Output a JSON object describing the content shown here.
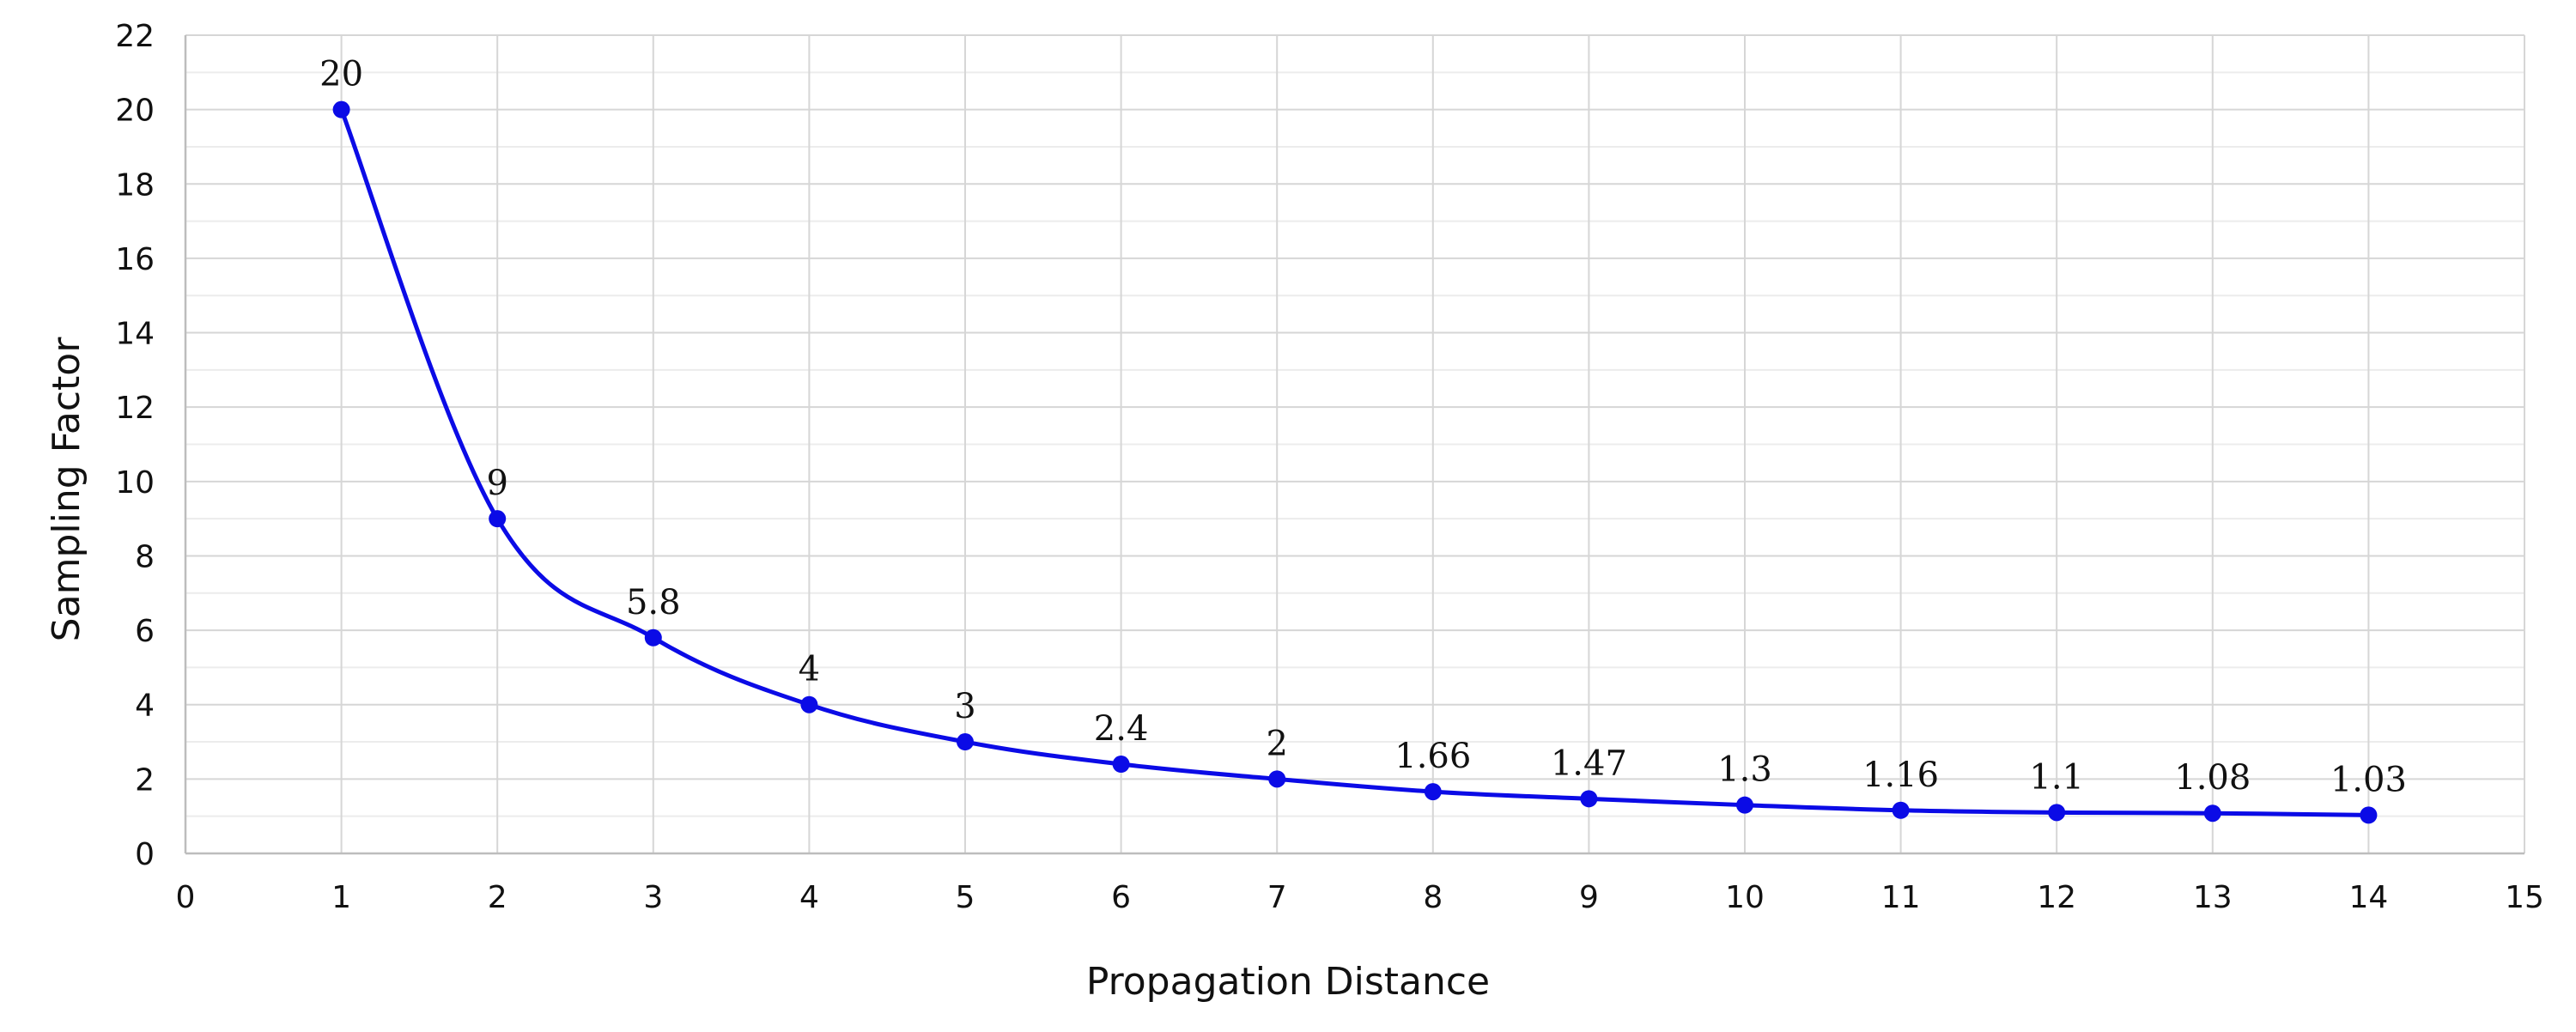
{
  "colors": {
    "series": "#0b0be6",
    "grid_major": "#d6d6d6",
    "grid_minor": "#ececec",
    "axis": "#bdbdbd"
  },
  "chart_data": {
    "type": "line",
    "title": "",
    "xlabel": "Propagation Distance",
    "ylabel": "Sampling Factor",
    "xlim": [
      0,
      15
    ],
    "ylim": [
      0,
      22
    ],
    "x_ticks": [
      0,
      1,
      2,
      3,
      4,
      5,
      6,
      7,
      8,
      9,
      10,
      11,
      12,
      13,
      14,
      15
    ],
    "y_ticks": [
      0,
      2,
      4,
      6,
      8,
      10,
      12,
      14,
      16,
      18,
      20,
      22
    ],
    "y_minor_step": 1,
    "grid": true,
    "smooth": true,
    "series": [
      {
        "name": "Sampling Factor",
        "x": [
          1,
          2,
          3,
          4,
          5,
          6,
          7,
          8,
          9,
          10,
          11,
          12,
          13,
          14
        ],
        "values": [
          20,
          9,
          5.8,
          4,
          3,
          2.4,
          2,
          1.66,
          1.47,
          1.3,
          1.16,
          1.1,
          1.08,
          1.03
        ],
        "data_labels": [
          "20",
          "9",
          "5.8",
          "4",
          "3",
          "2.4",
          "2",
          "1.66",
          "1.47",
          "1.3",
          "1.16",
          "1.1",
          "1.08",
          "1.03"
        ]
      }
    ]
  }
}
